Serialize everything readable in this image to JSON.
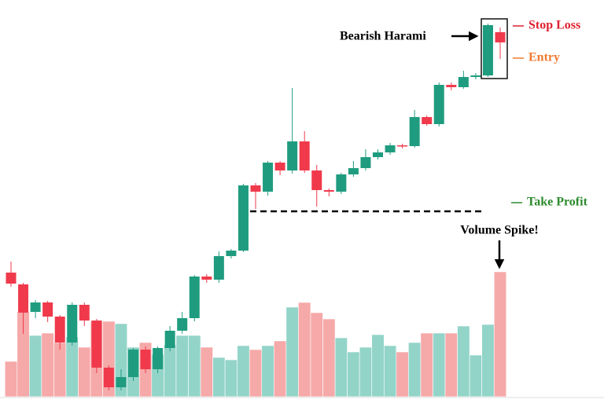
{
  "chart_data": {
    "type": "candlestick",
    "open": [
      158,
      143,
      108,
      120,
      102,
      69,
      117,
      97,
      37,
      12,
      25,
      60,
      35,
      62,
      84,
      100,
      153,
      149,
      179,
      186,
      269,
      261,
      298,
      288,
      325,
      288,
      263,
      261,
      283,
      291,
      305,
      311,
      320,
      319,
      356,
      347,
      397,
      394,
      407,
      409,
      464
    ],
    "high": [
      172,
      145,
      123,
      122,
      104,
      120,
      120,
      99,
      40,
      35,
      62,
      64,
      64,
      90,
      108,
      155,
      156,
      185,
      188,
      271,
      272,
      300,
      300,
      393,
      338,
      295,
      265,
      285,
      300,
      315,
      315,
      323,
      322,
      365,
      358,
      400,
      400,
      415,
      412,
      475,
      470
    ],
    "low": [
      140,
      80,
      100,
      95,
      60,
      65,
      90,
      30,
      8,
      8,
      20,
      30,
      30,
      58,
      80,
      96,
      145,
      145,
      176,
      184,
      239,
      256,
      282,
      284,
      285,
      242,
      255,
      258,
      280,
      288,
      302,
      308,
      316,
      317,
      345,
      344,
      390,
      392,
      404,
      407,
      430
    ],
    "close": [
      144,
      107,
      120,
      102,
      69,
      117,
      97,
      37,
      12,
      25,
      60,
      35,
      62,
      84,
      100,
      153,
      149,
      179,
      186,
      269,
      261,
      298,
      288,
      325,
      288,
      263,
      261,
      283,
      291,
      305,
      311,
      320,
      319,
      356,
      347,
      397,
      394,
      407,
      409,
      473,
      451
    ],
    "volume": [
      45,
      108,
      78,
      81,
      69,
      76,
      63,
      96,
      96,
      93,
      63,
      69,
      54,
      66,
      78,
      78,
      63,
      50,
      47,
      65,
      60,
      65,
      71,
      114,
      120,
      107,
      99,
      75,
      57,
      63,
      79,
      65,
      57,
      69,
      81,
      81,
      81,
      90,
      53,
      92,
      159
    ],
    "up_color": "#1f9c7f",
    "down_color": "#f03a4c",
    "volume_up_color": "#93d4c9",
    "volume_down_color": "#f6a9a9",
    "ylim": [
      0,
      500
    ],
    "pattern_label": "Bearish Harami",
    "volume_label": "Volume Spike!",
    "levels": [
      {
        "text": "Stop Loss",
        "value": 472,
        "color": "#e0202e"
      },
      {
        "text": "Entry",
        "value": 431,
        "color": "#f07a30"
      },
      {
        "text": "Take Profit",
        "value": 247,
        "color": "#2e8b2e"
      }
    ]
  }
}
